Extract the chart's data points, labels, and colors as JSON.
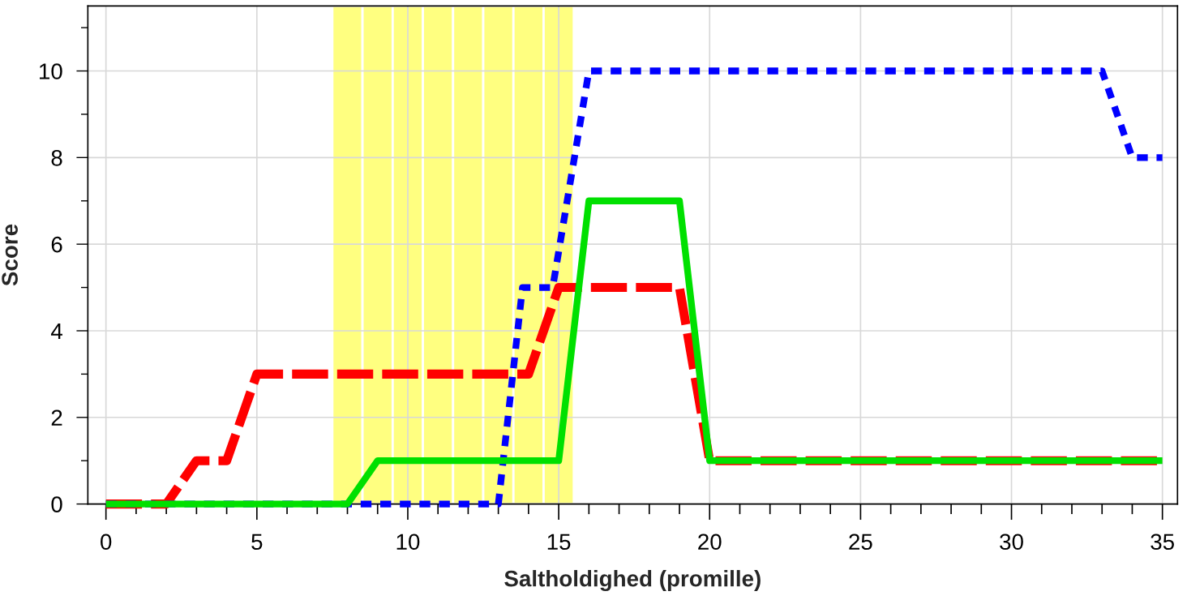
{
  "chart_data": {
    "type": "line",
    "xlabel": "Saltholdighed (promille)",
    "ylabel": "Score",
    "xlim": [
      -0.6,
      35.5
    ],
    "ylim": [
      0,
      11.5
    ],
    "xticks": [
      0,
      {
        "value": 1,
        "label": null
      },
      {
        "value": 2,
        "label": null
      },
      {
        "value": 3,
        "label": null
      },
      {
        "value": 4,
        "label": null
      },
      5,
      {
        "value": 6,
        "label": null
      },
      {
        "value": 7,
        "label": null
      },
      {
        "value": 8,
        "label": null
      },
      {
        "value": 9,
        "label": null
      },
      10,
      {
        "value": 11,
        "label": null
      },
      {
        "value": 12,
        "label": null
      },
      {
        "value": 13,
        "label": null
      },
      {
        "value": 14,
        "label": null
      },
      15,
      {
        "value": 16,
        "label": null
      },
      {
        "value": 17,
        "label": null
      },
      {
        "value": 18,
        "label": null
      },
      {
        "value": 19,
        "label": null
      },
      20,
      {
        "value": 21,
        "label": null
      },
      {
        "value": 22,
        "label": null
      },
      {
        "value": 23,
        "label": null
      },
      {
        "value": 24,
        "label": null
      },
      25,
      {
        "value": 26,
        "label": null
      },
      {
        "value": 27,
        "label": null
      },
      {
        "value": 28,
        "label": null
      },
      {
        "value": 29,
        "label": null
      },
      30,
      {
        "value": 31,
        "label": null
      },
      {
        "value": 32,
        "label": null
      },
      {
        "value": 33,
        "label": null
      },
      {
        "value": 34,
        "label": null
      },
      35
    ],
    "yticks": [
      0,
      {
        "value": 1,
        "label": null
      },
      2,
      {
        "value": 3,
        "label": null
      },
      4,
      {
        "value": 5,
        "label": null
      },
      6,
      {
        "value": 7,
        "label": null
      },
      8,
      {
        "value": 9,
        "label": null
      },
      10,
      {
        "value": 11,
        "label": null
      }
    ],
    "grid": true,
    "marker": "none",
    "bands": [
      {
        "axis": "x",
        "from": 7.5,
        "to": 8.5,
        "color": "#ffff80"
      },
      {
        "axis": "x",
        "from": 8.5,
        "to": 9.5,
        "color": "#ffff80"
      },
      {
        "axis": "x",
        "from": 9.5,
        "to": 10.5,
        "color": "#ffff80"
      },
      {
        "axis": "x",
        "from": 10.5,
        "to": 11.5,
        "color": "#ffff80"
      },
      {
        "axis": "x",
        "from": 11.5,
        "to": 12.5,
        "color": "#ffff80"
      },
      {
        "axis": "x",
        "from": 12.5,
        "to": 13.5,
        "color": "#ffff80"
      },
      {
        "axis": "x",
        "from": 13.5,
        "to": 14.5,
        "color": "#ffff80"
      },
      {
        "axis": "x",
        "from": 14.5,
        "to": 15.5,
        "color": "#ffff80"
      }
    ],
    "series": [
      {
        "color": "#ff0000",
        "line_style": "dashed",
        "x": [
          0,
          2,
          3,
          4,
          5,
          14,
          15,
          19,
          20,
          35
        ],
        "values": [
          0,
          0,
          1,
          1,
          3,
          3,
          5,
          5,
          1,
          1
        ]
      },
      {
        "color": "#0000ff",
        "line_style": "dotted",
        "x": [
          0,
          13,
          13.8,
          14.8,
          16,
          33,
          34,
          35
        ],
        "values": [
          0,
          0,
          5,
          5,
          10,
          10,
          8,
          8
        ]
      },
      {
        "color": "#00e000",
        "line_style": "solid",
        "x": [
          0,
          8,
          9,
          15,
          16,
          19,
          20,
          35
        ],
        "values": [
          0,
          0,
          1,
          1,
          7,
          7,
          1,
          1
        ]
      }
    ]
  }
}
